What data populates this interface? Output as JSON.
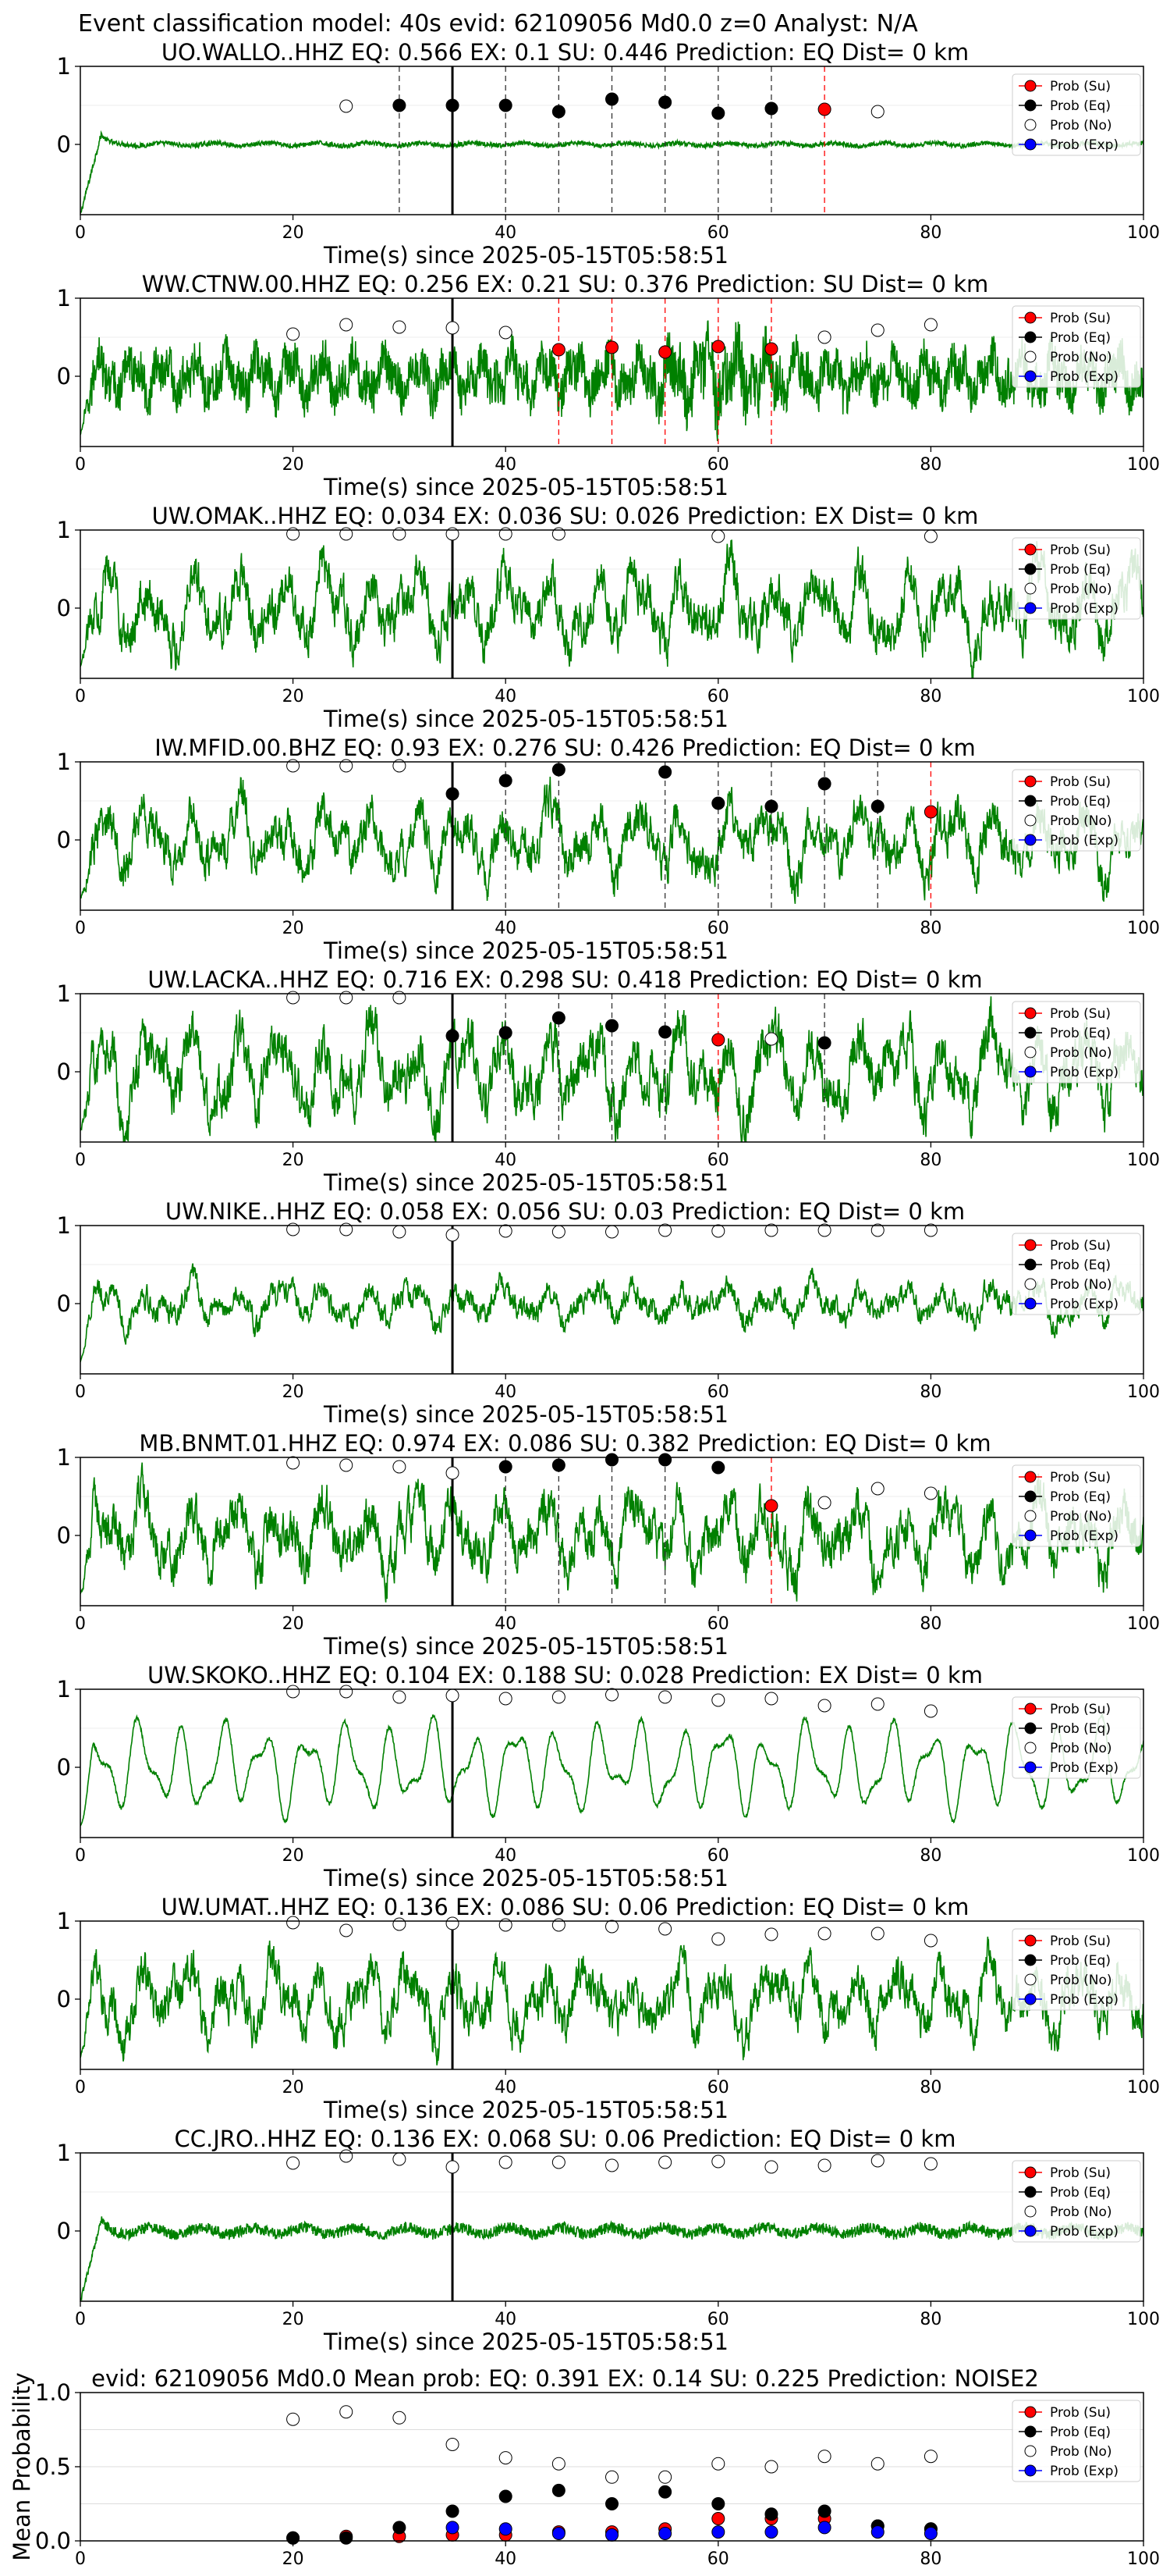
{
  "figure": {
    "suptitle": "Event classification model: 40s evid: 62109056 Md0.0 z=0 Analyst: N/A"
  },
  "colors": {
    "waveform": "#008000",
    "su": "#ff0000",
    "eq": "#000000",
    "no": "#ffffff",
    "exp": "#0000ff",
    "arrival": "#000000"
  },
  "legend": [
    "Prob (Su)",
    "Prob (Eq)",
    "Prob (No)",
    "Prob (Exp)"
  ],
  "chart_data": [
    {
      "type": "line",
      "title": "UO.WALLO..HHZ   EQ: 0.566  EX: 0.1  SU: 0.446   Prediction: EQ    Dist= 0 km",
      "xlabel": "Time(s) since 2025-05-15T05:58:51",
      "xlim": [
        0,
        100
      ],
      "xticks": [
        0,
        20,
        40,
        60,
        80,
        100
      ],
      "ylim": [
        -0.9,
        1.0
      ],
      "yticks": [
        0,
        1
      ],
      "arrival": 35,
      "style": "spike",
      "amp": 0.05,
      "dashed_black": [
        30,
        40,
        45,
        50,
        55,
        60,
        65
      ],
      "dashed_red": [
        70
      ],
      "points": {
        "su": [
          [
            70,
            0.45
          ]
        ],
        "eq": [
          [
            30,
            0.5
          ],
          [
            35,
            0.5
          ],
          [
            40,
            0.5
          ],
          [
            45,
            0.42
          ],
          [
            50,
            0.58
          ],
          [
            55,
            0.54
          ],
          [
            60,
            0.4
          ],
          [
            65,
            0.46
          ]
        ],
        "no": [
          [
            25,
            0.49
          ],
          [
            75,
            0.42
          ]
        ],
        "exp": []
      }
    },
    {
      "type": "line",
      "title": "WW.CTNW.00.HHZ   EQ: 0.256  EX: 0.21  SU: 0.376   Prediction: SU    Dist= 0 km",
      "xlabel": "Time(s) since 2025-05-15T05:58:51",
      "xlim": [
        0,
        100
      ],
      "xticks": [
        0,
        20,
        40,
        60,
        80,
        100
      ],
      "ylim": [
        -0.9,
        1.0
      ],
      "yticks": [
        0,
        1
      ],
      "arrival": 35,
      "style": "noisy",
      "amp": 0.5,
      "dashed_black": [],
      "dashed_red": [
        45,
        50,
        55,
        60,
        65
      ],
      "points": {
        "su": [
          [
            45,
            0.34
          ],
          [
            50,
            0.37
          ],
          [
            55,
            0.31
          ],
          [
            60,
            0.38
          ],
          [
            65,
            0.35
          ]
        ],
        "eq": [],
        "no": [
          [
            20,
            0.54
          ],
          [
            25,
            0.66
          ],
          [
            30,
            0.63
          ],
          [
            35,
            0.62
          ],
          [
            40,
            0.56
          ],
          [
            70,
            0.5
          ],
          [
            75,
            0.59
          ],
          [
            80,
            0.66
          ]
        ],
        "exp": []
      }
    },
    {
      "type": "line",
      "title": "UW.OMAK..HHZ   EQ: 0.034  EX: 0.036  SU: 0.026   Prediction: EX    Dist= 0 km",
      "xlabel": "Time(s) since 2025-05-15T05:58:51",
      "xlim": [
        0,
        100
      ],
      "xticks": [
        0,
        20,
        40,
        60,
        80,
        100
      ],
      "ylim": [
        -0.9,
        1.0
      ],
      "yticks": [
        0,
        1
      ],
      "arrival": 35,
      "style": "wave",
      "amp": 0.6,
      "dashed_black": [],
      "dashed_red": [],
      "points": {
        "su": [],
        "eq": [],
        "no": [
          [
            20,
            0.95
          ],
          [
            25,
            0.95
          ],
          [
            30,
            0.95
          ],
          [
            35,
            0.95
          ],
          [
            40,
            0.95
          ],
          [
            45,
            0.95
          ],
          [
            60,
            0.92
          ],
          [
            80,
            0.92
          ]
        ],
        "exp": []
      }
    },
    {
      "type": "line",
      "title": "IW.MFID.00.BHZ   EQ: 0.93  EX: 0.276  SU: 0.426   Prediction: EQ    Dist= 0 km",
      "xlabel": "Time(s) since 2025-05-15T05:58:51",
      "xlim": [
        0,
        100
      ],
      "xticks": [
        0,
        20,
        40,
        60,
        80,
        100
      ],
      "ylim": [
        -0.9,
        1.0
      ],
      "yticks": [
        0,
        1
      ],
      "arrival": 35,
      "style": "wave",
      "amp": 0.55,
      "dashed_black": [
        40,
        45,
        55,
        60,
        65,
        70,
        75
      ],
      "dashed_red": [
        80
      ],
      "points": {
        "su": [
          [
            80,
            0.36
          ]
        ],
        "eq": [
          [
            35,
            0.59
          ],
          [
            40,
            0.76
          ],
          [
            45,
            0.9
          ],
          [
            55,
            0.87
          ],
          [
            60,
            0.47
          ],
          [
            65,
            0.43
          ],
          [
            70,
            0.72
          ],
          [
            75,
            0.43
          ]
        ],
        "no": [
          [
            20,
            0.95
          ],
          [
            25,
            0.95
          ],
          [
            30,
            0.95
          ]
        ],
        "exp": []
      }
    },
    {
      "type": "line",
      "title": "UW.LACKA..HHZ   EQ: 0.716  EX: 0.298  SU: 0.418   Prediction: EQ    Dist= 0 km",
      "xlabel": "Time(s) since 2025-05-15T05:58:51",
      "xlim": [
        0,
        100
      ],
      "xticks": [
        0,
        20,
        40,
        60,
        80,
        100
      ],
      "ylim": [
        -0.9,
        1.0
      ],
      "yticks": [
        0,
        1
      ],
      "arrival": 35,
      "style": "wave",
      "amp": 0.65,
      "dashed_black": [
        40,
        45,
        50,
        55,
        70
      ],
      "dashed_red": [
        60
      ],
      "points": {
        "su": [
          [
            60,
            0.41
          ]
        ],
        "eq": [
          [
            35,
            0.46
          ],
          [
            40,
            0.5
          ],
          [
            45,
            0.69
          ],
          [
            50,
            0.59
          ],
          [
            55,
            0.51
          ],
          [
            70,
            0.37
          ]
        ],
        "no": [
          [
            20,
            0.95
          ],
          [
            25,
            0.95
          ],
          [
            30,
            0.95
          ],
          [
            65,
            0.42
          ]
        ],
        "exp": []
      }
    },
    {
      "type": "line",
      "title": "UW.NIKE..HHZ   EQ: 0.058  EX: 0.056  SU: 0.03   Prediction: EQ    Dist= 0 km",
      "xlabel": "Time(s) since 2025-05-15T05:58:51",
      "xlim": [
        0,
        100
      ],
      "xticks": [
        0,
        20,
        40,
        60,
        80,
        100
      ],
      "ylim": [
        -0.9,
        1.0
      ],
      "yticks": [
        0,
        1
      ],
      "arrival": 35,
      "style": "wave",
      "amp": 0.3,
      "dashed_black": [],
      "dashed_red": [],
      "points": {
        "su": [],
        "eq": [],
        "no": [
          [
            20,
            0.95
          ],
          [
            25,
            0.95
          ],
          [
            30,
            0.92
          ],
          [
            35,
            0.88
          ],
          [
            40,
            0.93
          ],
          [
            45,
            0.92
          ],
          [
            50,
            0.92
          ],
          [
            55,
            0.94
          ],
          [
            60,
            0.93
          ],
          [
            65,
            0.94
          ],
          [
            70,
            0.94
          ],
          [
            75,
            0.94
          ],
          [
            80,
            0.94
          ]
        ],
        "exp": []
      }
    },
    {
      "type": "line",
      "title": "MB.BNMT.01.HHZ   EQ: 0.974  EX: 0.086  SU: 0.382   Prediction: EQ    Dist= 0 km",
      "xlabel": "Time(s) since 2025-05-15T05:58:51",
      "xlim": [
        0,
        100
      ],
      "xticks": [
        0,
        20,
        40,
        60,
        80,
        100
      ],
      "ylim": [
        -0.9,
        1.0
      ],
      "yticks": [
        0,
        1
      ],
      "arrival": 35,
      "style": "wave",
      "amp": 0.6,
      "dashed_black": [
        40,
        45,
        50,
        55
      ],
      "dashed_red": [
        65
      ],
      "points": {
        "su": [
          [
            65,
            0.38
          ]
        ],
        "eq": [
          [
            40,
            0.88
          ],
          [
            45,
            0.9
          ],
          [
            50,
            0.97
          ],
          [
            55,
            0.97
          ],
          [
            60,
            0.87
          ]
        ],
        "no": [
          [
            20,
            0.93
          ],
          [
            25,
            0.9
          ],
          [
            30,
            0.88
          ],
          [
            35,
            0.8
          ],
          [
            70,
            0.42
          ],
          [
            75,
            0.6
          ],
          [
            80,
            0.54
          ]
        ],
        "exp": []
      }
    },
    {
      "type": "line",
      "title": "UW.SKOKO..HHZ   EQ: 0.104  EX: 0.188  SU: 0.028   Prediction: EX    Dist= 0 km",
      "xlabel": "Time(s) since 2025-05-15T05:58:51",
      "xlim": [
        0,
        100
      ],
      "xticks": [
        0,
        20,
        40,
        60,
        80,
        100
      ],
      "ylim": [
        -0.9,
        1.0
      ],
      "yticks": [
        0,
        1
      ],
      "arrival": 35,
      "style": "smooth",
      "amp": 0.65,
      "dashed_black": [],
      "dashed_red": [],
      "points": {
        "su": [],
        "eq": [],
        "no": [
          [
            20,
            0.97
          ],
          [
            25,
            0.97
          ],
          [
            30,
            0.9
          ],
          [
            35,
            0.92
          ],
          [
            40,
            0.88
          ],
          [
            45,
            0.9
          ],
          [
            50,
            0.93
          ],
          [
            55,
            0.9
          ],
          [
            60,
            0.86
          ],
          [
            65,
            0.88
          ],
          [
            70,
            0.79
          ],
          [
            75,
            0.81
          ],
          [
            80,
            0.72
          ]
        ],
        "exp": []
      }
    },
    {
      "type": "line",
      "title": "UW.UMAT..HHZ   EQ: 0.136  EX: 0.086  SU: 0.06   Prediction: EQ    Dist= 0 km",
      "xlabel": "Time(s) since 2025-05-15T05:58:51",
      "xlim": [
        0,
        100
      ],
      "xticks": [
        0,
        20,
        40,
        60,
        80,
        100
      ],
      "ylim": [
        -0.9,
        1.0
      ],
      "yticks": [
        0,
        1
      ],
      "arrival": 35,
      "style": "wave",
      "amp": 0.55,
      "dashed_black": [],
      "dashed_red": [],
      "points": {
        "su": [],
        "eq": [],
        "no": [
          [
            20,
            0.98
          ],
          [
            25,
            0.88
          ],
          [
            30,
            0.96
          ],
          [
            35,
            0.97
          ],
          [
            40,
            0.95
          ],
          [
            45,
            0.95
          ],
          [
            50,
            0.93
          ],
          [
            55,
            0.9
          ],
          [
            60,
            0.77
          ],
          [
            65,
            0.83
          ],
          [
            70,
            0.84
          ],
          [
            75,
            0.84
          ],
          [
            80,
            0.75
          ]
        ],
        "exp": []
      }
    },
    {
      "type": "line",
      "title": "CC.JRO..HHZ   EQ: 0.136  EX: 0.068  SU: 0.06   Prediction: EQ    Dist= 0 km",
      "xlabel": "Time(s) since 2025-05-15T05:58:51",
      "xlim": [
        0,
        100
      ],
      "xticks": [
        0,
        20,
        40,
        60,
        80,
        100
      ],
      "ylim": [
        -0.9,
        1.0
      ],
      "yticks": [
        0,
        1
      ],
      "arrival": 35,
      "style": "spike",
      "amp": 0.12,
      "dashed_black": [],
      "dashed_red": [],
      "points": {
        "su": [],
        "eq": [],
        "no": [
          [
            20,
            0.87
          ],
          [
            25,
            0.96
          ],
          [
            30,
            0.92
          ],
          [
            35,
            0.82
          ],
          [
            40,
            0.88
          ],
          [
            45,
            0.88
          ],
          [
            50,
            0.84
          ],
          [
            55,
            0.88
          ],
          [
            60,
            0.89
          ],
          [
            65,
            0.82
          ],
          [
            70,
            0.84
          ],
          [
            75,
            0.9
          ],
          [
            80,
            0.86
          ]
        ],
        "exp": []
      }
    },
    {
      "type": "scatter",
      "title": "evid: 62109056  Md0.0   Mean prob:   EQ: 0.391  EX: 0.14  SU: 0.225   Prediction: NOISE2",
      "xlabel": "",
      "ylabel": "Mean Probability",
      "xlim": [
        0,
        100
      ],
      "xticks": [
        0,
        20,
        40,
        60,
        80,
        100
      ],
      "ylim": [
        0,
        1.0
      ],
      "yticks": [
        0,
        0.5,
        1.0
      ],
      "ytick_labels": [
        "0.0",
        "0.5",
        "1.0"
      ],
      "grid": true,
      "arrival": null,
      "style": "none",
      "points": {
        "su": [
          [
            20,
            0.02
          ],
          [
            25,
            0.03
          ],
          [
            30,
            0.03
          ],
          [
            35,
            0.04
          ],
          [
            40,
            0.04
          ],
          [
            45,
            0.06
          ],
          [
            50,
            0.06
          ],
          [
            55,
            0.08
          ],
          [
            60,
            0.15
          ],
          [
            65,
            0.15
          ],
          [
            70,
            0.15
          ],
          [
            75,
            0.1
          ],
          [
            80,
            0.08
          ]
        ],
        "eq": [
          [
            20,
            0.02
          ],
          [
            25,
            0.02
          ],
          [
            30,
            0.09
          ],
          [
            35,
            0.2
          ],
          [
            40,
            0.3
          ],
          [
            45,
            0.34
          ],
          [
            50,
            0.25
          ],
          [
            55,
            0.33
          ],
          [
            60,
            0.25
          ],
          [
            65,
            0.18
          ],
          [
            70,
            0.2
          ],
          [
            75,
            0.1
          ],
          [
            80,
            0.08
          ]
        ],
        "no": [
          [
            20,
            0.82
          ],
          [
            25,
            0.87
          ],
          [
            30,
            0.83
          ],
          [
            35,
            0.65
          ],
          [
            40,
            0.56
          ],
          [
            45,
            0.52
          ],
          [
            50,
            0.43
          ],
          [
            55,
            0.43
          ],
          [
            60,
            0.52
          ],
          [
            65,
            0.5
          ],
          [
            70,
            0.57
          ],
          [
            75,
            0.52
          ],
          [
            80,
            0.57
          ]
        ],
        "exp": [
          [
            35,
            0.09
          ],
          [
            40,
            0.08
          ],
          [
            45,
            0.05
          ],
          [
            50,
            0.04
          ],
          [
            55,
            0.05
          ],
          [
            60,
            0.06
          ],
          [
            65,
            0.06
          ],
          [
            70,
            0.09
          ],
          [
            75,
            0.06
          ],
          [
            80,
            0.05
          ]
        ]
      }
    }
  ]
}
